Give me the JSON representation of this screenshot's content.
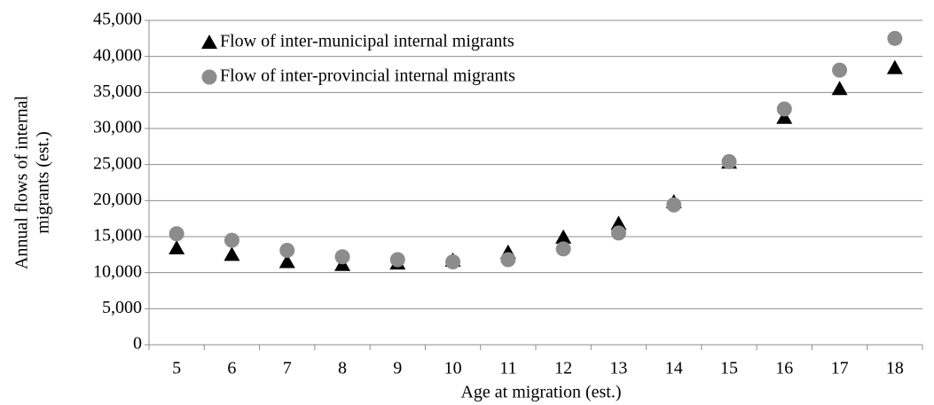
{
  "chart_data": {
    "type": "scatter",
    "xlabel": "Age at migration (est.)",
    "ylabel": [
      "Annual flows of internal",
      "migrants (est.)"
    ],
    "categories": [
      "5",
      "6",
      "7",
      "8",
      "9",
      "10",
      "11",
      "12",
      "13",
      "14",
      "15",
      "16",
      "17",
      "18"
    ],
    "series": [
      {
        "name": "Flow of inter-municipal internal migrants",
        "color": "#000000",
        "marker": "triangle",
        "values": [
          13400,
          12500,
          11500,
          11100,
          11300,
          11700,
          12800,
          14900,
          16800,
          19800,
          25300,
          31500,
          35500,
          38400
        ]
      },
      {
        "name": "Flow of inter-provincial internal migrants",
        "color": "#8c8c8c",
        "marker": "circle",
        "values": [
          15400,
          14500,
          13100,
          12200,
          11800,
          11500,
          11800,
          13300,
          15500,
          19400,
          25400,
          32700,
          38100,
          42500
        ]
      }
    ],
    "ylim": [
      0,
      45000
    ],
    "yticks": [
      0,
      {
        "value": 5000,
        "label": "5,000"
      },
      {
        "value": 10000,
        "label": "10,000"
      },
      {
        "value": 15000,
        "label": "15,000"
      },
      {
        "value": 20000,
        "label": "20,000"
      },
      {
        "value": 25000,
        "label": "25,000"
      },
      {
        "value": 30000,
        "label": "30,000"
      },
      {
        "value": 35000,
        "label": "35,000"
      },
      {
        "value": 40000,
        "label": "40,000"
      },
      {
        "value": 45000,
        "label": "45,000"
      }
    ],
    "grid": true,
    "legend": "top-left"
  }
}
